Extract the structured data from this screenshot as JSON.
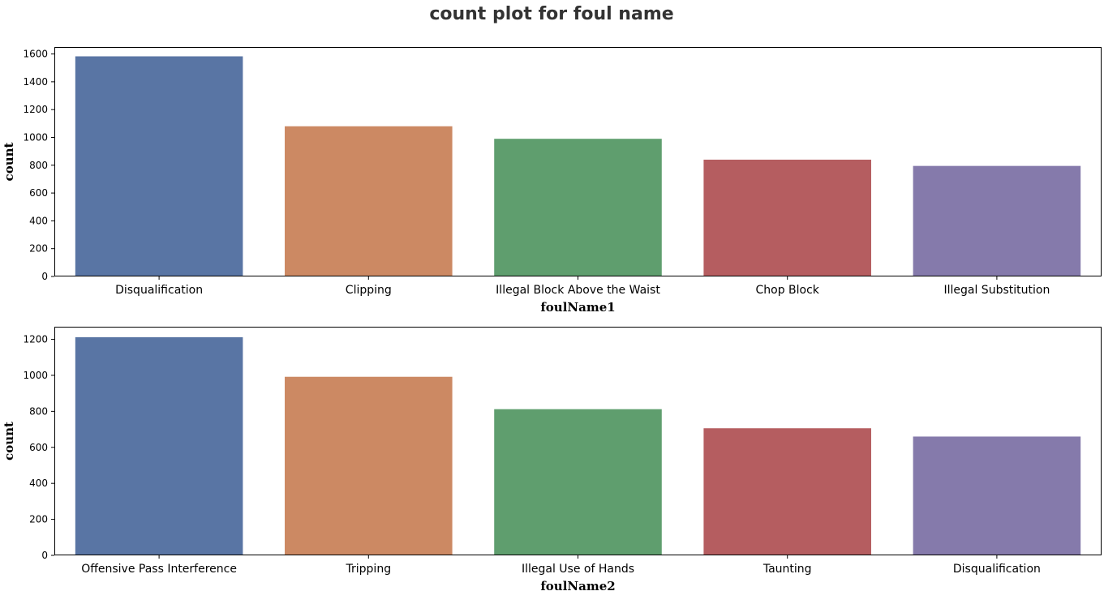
{
  "figure": {
    "suptitle": "count plot for foul name"
  },
  "chart_data": [
    {
      "type": "bar",
      "title": "",
      "xlabel": "foulName1",
      "ylabel": "count",
      "categories": [
        "Disqualification",
        "Clipping",
        "Illegal Block Above the Waist",
        "Chop Block",
        "Illegal Substitution"
      ],
      "values": [
        1583,
        1080,
        990,
        840,
        795
      ],
      "ylim": [
        0,
        1650
      ],
      "yticks": [
        0,
        200,
        400,
        600,
        800,
        1000,
        1200,
        1400,
        1600
      ],
      "colors": [
        "#5975a4",
        "#cc8963",
        "#5f9e6e",
        "#b55d60",
        "#857aab"
      ],
      "grid": false,
      "legend": "none"
    },
    {
      "type": "bar",
      "title": "",
      "xlabel": "foulName2",
      "ylabel": "count",
      "categories": [
        "Offensive Pass Interference",
        "Tripping",
        "Illegal Use of Hands",
        "Taunting",
        "Disqualification"
      ],
      "values": [
        1212,
        992,
        812,
        706,
        660
      ],
      "ylim": [
        0,
        1270
      ],
      "yticks": [
        0,
        200,
        400,
        600,
        800,
        1000,
        1200
      ],
      "colors": [
        "#5975a4",
        "#cc8963",
        "#5f9e6e",
        "#b55d60",
        "#857aab"
      ],
      "grid": false,
      "legend": "none"
    }
  ]
}
